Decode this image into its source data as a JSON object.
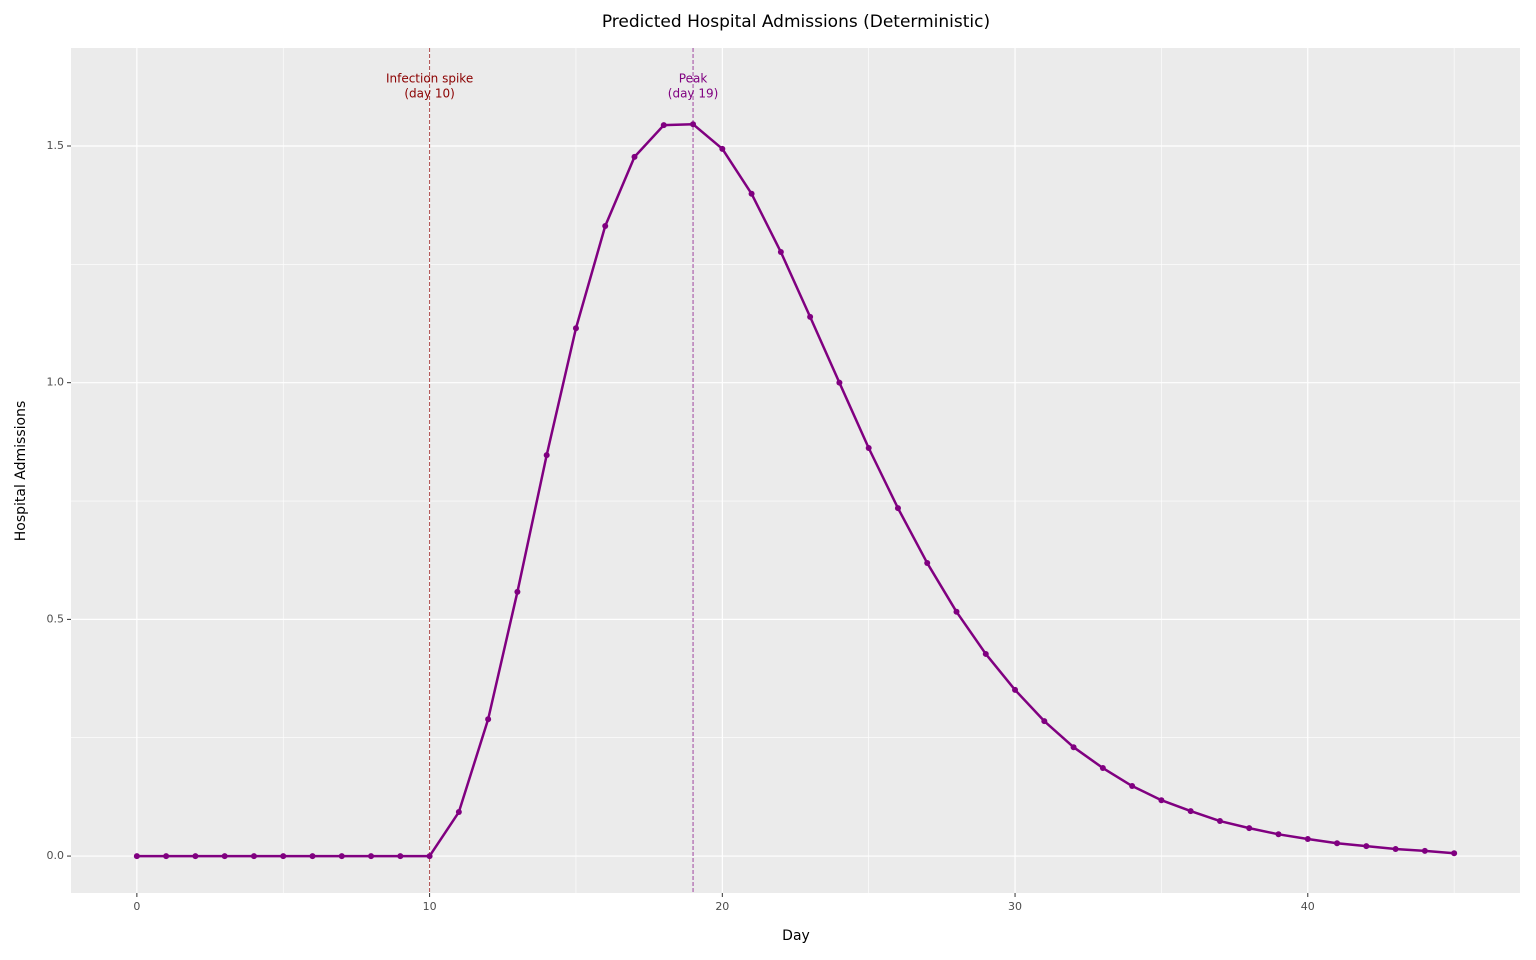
{
  "chart_data": {
    "type": "line",
    "title": "Predicted Hospital Admissions (Deterministic)",
    "xlabel": "Day",
    "ylabel": "Hospital Admissions",
    "x": [
      0,
      1,
      2,
      3,
      4,
      5,
      6,
      7,
      8,
      9,
      10,
      11,
      12,
      13,
      14,
      15,
      16,
      17,
      18,
      19,
      20,
      21,
      22,
      23,
      24,
      25,
      26,
      27,
      28,
      29,
      30,
      31,
      32,
      33,
      34,
      35,
      36,
      37,
      38,
      39,
      40,
      41,
      42,
      43,
      44,
      45
    ],
    "series": [
      {
        "color": "#800080",
        "values": [
          0,
          0,
          0,
          0,
          0,
          0,
          0,
          0,
          0,
          0,
          0,
          0.093,
          0.289,
          0.558,
          0.847,
          1.115,
          1.331,
          1.477,
          1.544,
          1.546,
          1.494,
          1.399,
          1.276,
          1.139,
          1.0,
          0.862,
          0.735,
          0.619,
          0.516,
          0.427,
          0.351,
          0.285,
          0.23,
          0.186,
          0.148,
          0.118,
          0.095,
          0.074,
          0.059,
          0.046,
          0.036,
          0.027,
          0.021,
          0.015,
          0.011,
          0.006
        ]
      }
    ],
    "xlim": [
      -2.25,
      47.25
    ],
    "ylim": [
      -0.078,
      1.707
    ],
    "xticks": [
      0,
      10,
      20,
      30,
      40
    ],
    "yticks": [
      {
        "value": 0,
        "label": "0.0"
      },
      0.5,
      {
        "value": 1,
        "label": "1.0"
      },
      1.5
    ],
    "x_minor_grid": [
      5,
      15,
      25,
      35,
      45
    ],
    "y_minor_grid": [
      0.25,
      0.75,
      1.25
    ],
    "grid": true,
    "vlines": [
      {
        "x": 10,
        "color": "#8b0000",
        "label": [
          "Infection spike",
          "(day 10)"
        ]
      },
      {
        "x": 19,
        "color": "#800080",
        "label": [
          "Peak",
          "(day 19)"
        ]
      }
    ]
  }
}
